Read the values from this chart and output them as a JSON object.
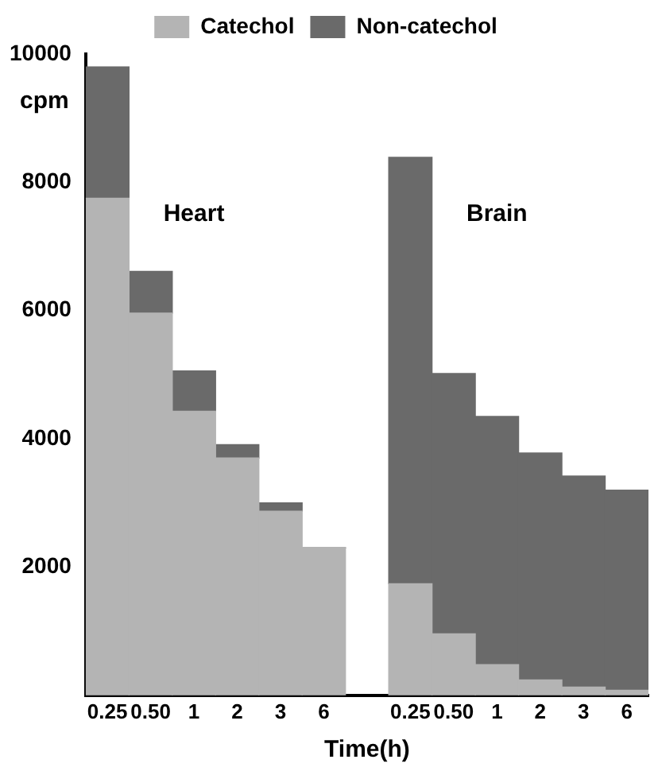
{
  "chart_data": {
    "type": "bar",
    "stacked": true,
    "xlabel": "Time(h)",
    "ylabel": "cpm",
    "categories": [
      "0.25",
      "0.50",
      "1",
      "2",
      "3",
      "6",
      null,
      "0.25",
      "0.50",
      "1",
      "2",
      "3",
      "6"
    ],
    "series": [
      {
        "name": "Catechol",
        "color": "#b4b4b4",
        "values": [
          7750,
          5960,
          4430,
          3700,
          2870,
          2300,
          null,
          1740,
          960,
          480,
          240,
          130,
          80
        ]
      },
      {
        "name": "Non-catechol",
        "color": "#6a6a6a",
        "values": [
          2050,
          650,
          630,
          210,
          130,
          0,
          null,
          6650,
          4060,
          3870,
          3540,
          3290,
          3120
        ]
      }
    ],
    "ylim": [
      0,
      10000
    ],
    "yticks": [
      2000,
      4000,
      6000,
      8000,
      10000
    ],
    "grid": false,
    "legend": "top",
    "annotations": [
      "Heart",
      "Brain"
    ]
  }
}
